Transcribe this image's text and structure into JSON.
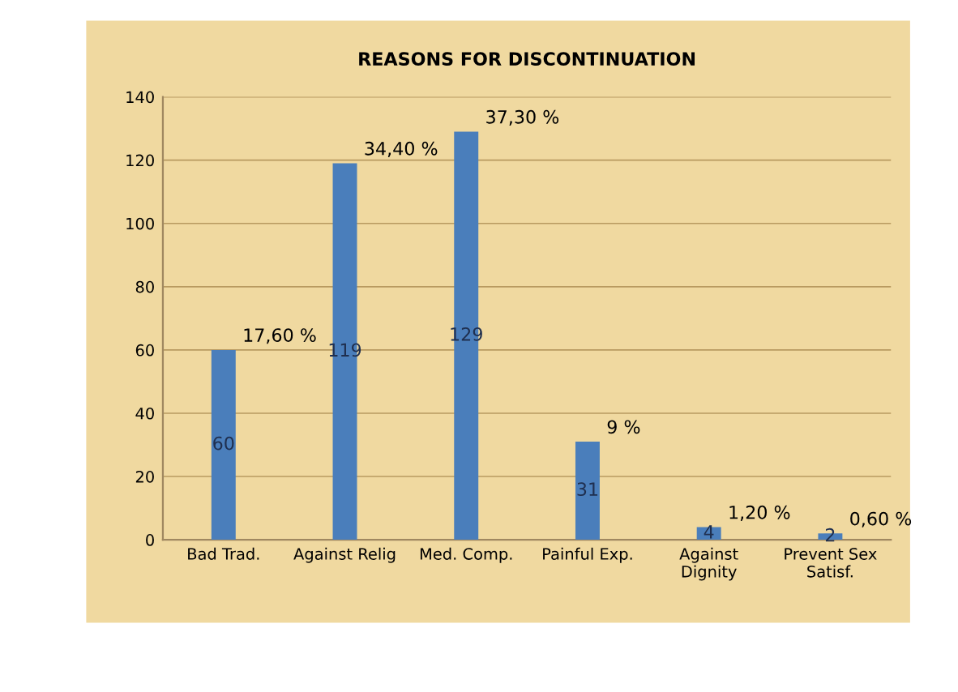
{
  "chart_data": {
    "type": "bar",
    "title": "REASONS FOR DISCONTINUATION",
    "categories": [
      "Bad Trad.",
      "Against Relig",
      "Med. Comp.",
      "Painful Exp.",
      "Against\nDignity",
      "Prevent Sex\nSatisf."
    ],
    "values": [
      60,
      119,
      129,
      31,
      4,
      2
    ],
    "color": "#4a7ebb",
    "data_labels": true,
    "ylim": [
      0,
      140
    ],
    "yticks": [
      0,
      20,
      40,
      60,
      80,
      100,
      120,
      140
    ],
    "grid": "y",
    "annotations": [
      {
        "text": "17,60 %",
        "x": "Bad Trad.",
        "y": 60
      },
      {
        "text": "34,40 %",
        "x": "Against Relig",
        "y": 119
      },
      {
        "text": "37,30 %",
        "x": "Med. Comp.",
        "y": 129
      },
      {
        "text": "9 %",
        "x": "Painful Exp.",
        "y": 31
      },
      {
        "text": "1,20 %",
        "x": "Against\nDignity",
        "y": 4
      },
      {
        "text": "0,60 %",
        "x": "Prevent Sex\nSatisf.",
        "y": 2
      }
    ]
  }
}
